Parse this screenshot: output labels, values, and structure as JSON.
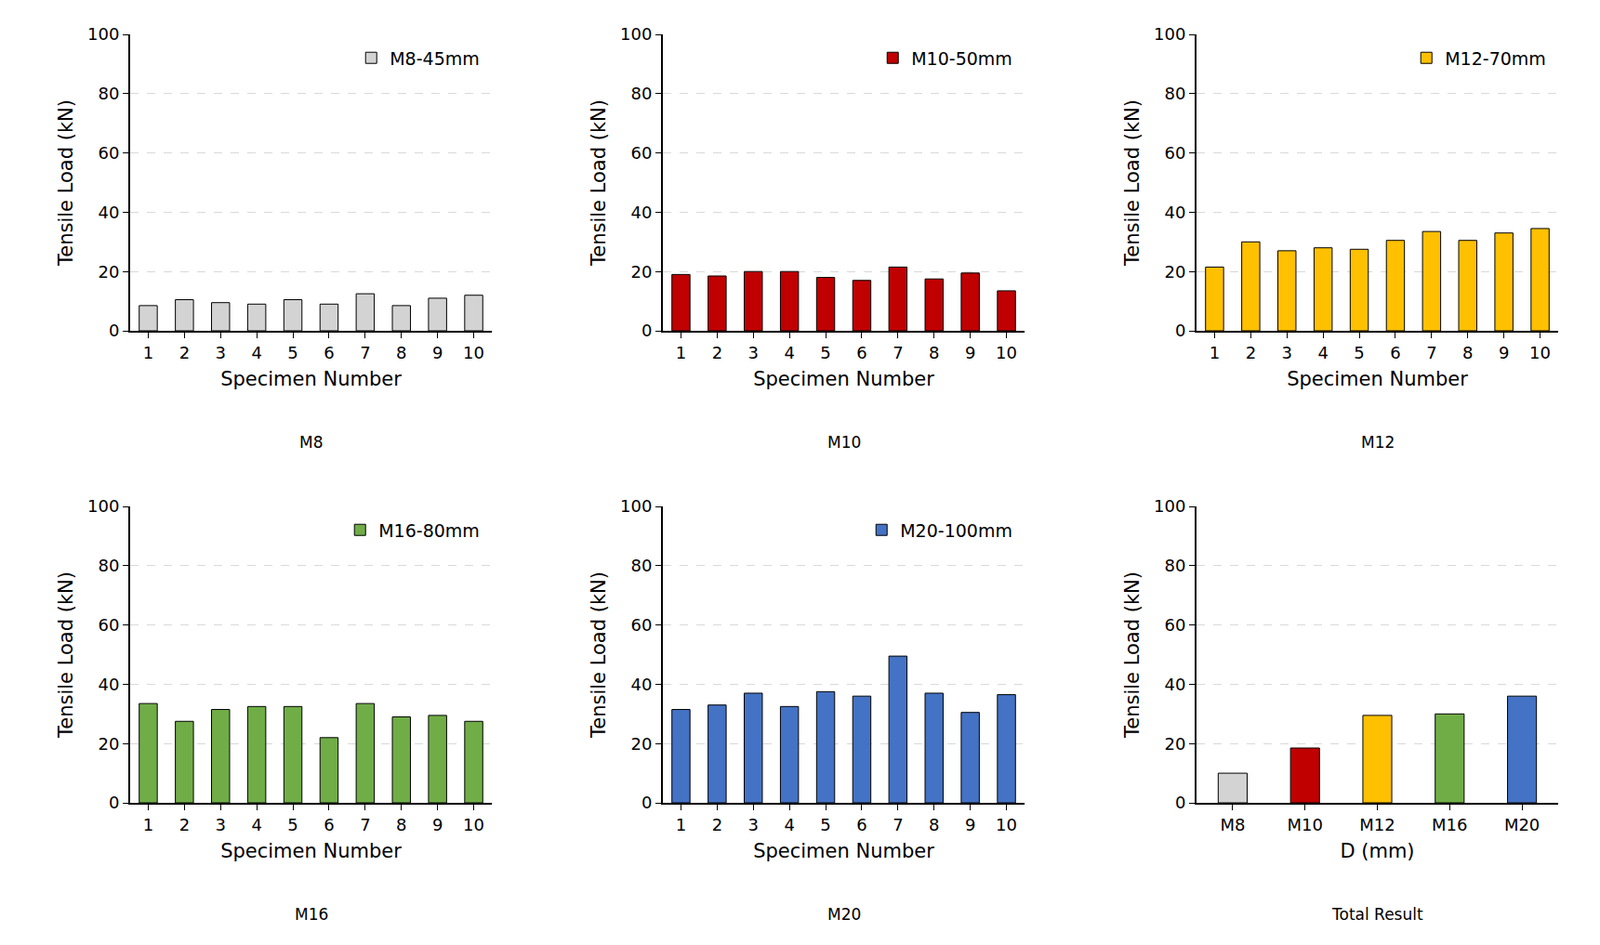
{
  "chart_data": [
    {
      "type": "bar",
      "title": "M8",
      "x_label": "Specimen Number",
      "y_label": "Tensile Load (kN)",
      "categories": [
        "1",
        "2",
        "3",
        "4",
        "5",
        "6",
        "7",
        "8",
        "9",
        "10"
      ],
      "series": [
        {
          "name": "M8-45mm",
          "color": "#d3d3d3",
          "values": [
            8.5,
            10.5,
            9.5,
            9,
            10.5,
            9,
            12.5,
            8.5,
            11,
            12
          ]
        }
      ],
      "ylim": [
        0,
        100
      ],
      "yticks": [
        0,
        20,
        40,
        60,
        80,
        100
      ],
      "grid": true,
      "legend": "upper right"
    },
    {
      "type": "bar",
      "title": "M10",
      "x_label": "Specimen Number",
      "y_label": "Tensile Load (kN)",
      "categories": [
        "1",
        "2",
        "3",
        "4",
        "5",
        "6",
        "7",
        "8",
        "9",
        "10"
      ],
      "series": [
        {
          "name": "M10-50mm",
          "color": "#c00000",
          "values": [
            19,
            18.5,
            20,
            20,
            18,
            17,
            21.5,
            17.5,
            19.5,
            13.5
          ]
        }
      ],
      "ylim": [
        0,
        100
      ],
      "yticks": [
        0,
        20,
        40,
        60,
        80,
        100
      ],
      "grid": true,
      "legend": "upper right"
    },
    {
      "type": "bar",
      "title": "M12",
      "x_label": "Specimen Number",
      "y_label": "Tensile Load (kN)",
      "categories": [
        "1",
        "2",
        "3",
        "4",
        "5",
        "6",
        "7",
        "8",
        "9",
        "10"
      ],
      "series": [
        {
          "name": "M12-70mm",
          "color": "#ffc000",
          "values": [
            21.5,
            30,
            27,
            28,
            27.5,
            30.5,
            33.5,
            30.5,
            33,
            34.5
          ]
        }
      ],
      "ylim": [
        0,
        100
      ],
      "yticks": [
        0,
        20,
        40,
        60,
        80,
        100
      ],
      "grid": true,
      "legend": "upper right"
    },
    {
      "type": "bar",
      "title": "M16",
      "x_label": "Specimen Number",
      "y_label": "Tensile Load (kN)",
      "categories": [
        "1",
        "2",
        "3",
        "4",
        "5",
        "6",
        "7",
        "8",
        "9",
        "10"
      ],
      "series": [
        {
          "name": "M16-80mm",
          "color": "#70ad47",
          "values": [
            33.5,
            27.5,
            31.5,
            32.5,
            32.5,
            22,
            33.5,
            29,
            29.5,
            27.5
          ]
        }
      ],
      "ylim": [
        0,
        100
      ],
      "yticks": [
        0,
        20,
        40,
        60,
        80,
        100
      ],
      "grid": true,
      "legend": "upper right"
    },
    {
      "type": "bar",
      "title": "M20",
      "x_label": "Specimen Number",
      "y_label": "Tensile Load (kN)",
      "categories": [
        "1",
        "2",
        "3",
        "4",
        "5",
        "6",
        "7",
        "8",
        "9",
        "10"
      ],
      "series": [
        {
          "name": "M20-100mm",
          "color": "#4472c4",
          "values": [
            31.5,
            33,
            37,
            32.5,
            37.5,
            36,
            49.5,
            37,
            30.5,
            36.5
          ]
        }
      ],
      "ylim": [
        0,
        100
      ],
      "yticks": [
        0,
        20,
        40,
        60,
        80,
        100
      ],
      "grid": true,
      "legend": "upper right"
    },
    {
      "type": "bar",
      "title": "Total Result",
      "x_label": "D (mm)",
      "y_label": "Tensile Load (kN)",
      "categories": [
        "M8",
        "M10",
        "M12",
        "M16",
        "M20"
      ],
      "values": [
        10,
        18.5,
        29.5,
        30,
        36
      ],
      "colors": [
        "#d3d3d3",
        "#c00000",
        "#ffc000",
        "#70ad47",
        "#4472c4"
      ],
      "ylim": [
        0,
        100
      ],
      "yticks": [
        0,
        20,
        40,
        60,
        80,
        100
      ],
      "grid": true
    }
  ]
}
